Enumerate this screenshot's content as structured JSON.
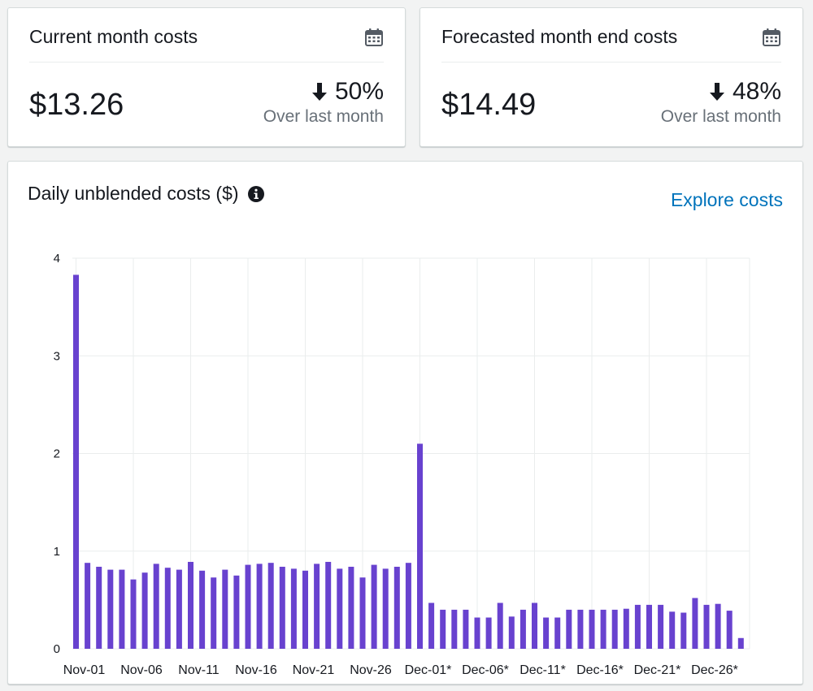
{
  "current": {
    "title": "Current month costs",
    "value": "$13.26",
    "change_pct": "50%",
    "change_label": "Over last month"
  },
  "forecast": {
    "title": "Forecasted month end costs",
    "value": "$14.49",
    "change_pct": "48%",
    "change_label": "Over last month"
  },
  "daily": {
    "title": "Daily unblended costs ($)",
    "link": "Explore costs"
  },
  "colors": {
    "bar": "#6842cf",
    "grid": "#eaeded",
    "link": "#0073bb"
  },
  "chart_data": {
    "type": "bar",
    "title": "Daily unblended costs ($)",
    "ylim": [
      0,
      4
    ],
    "yticks": [
      0,
      1,
      2,
      3,
      4
    ],
    "grid": true,
    "legend": "none",
    "xtick_labels": [
      "Nov-01",
      "Nov-06",
      "Nov-11",
      "Nov-16",
      "Nov-21",
      "Nov-26",
      "Dec-01*",
      "Dec-06*",
      "Dec-11*",
      "Dec-16*",
      "Dec-21*",
      "Dec-26*"
    ],
    "values": [
      3.83,
      0.88,
      0.84,
      0.81,
      0.81,
      0.71,
      0.78,
      0.87,
      0.83,
      0.81,
      0.89,
      0.8,
      0.73,
      0.81,
      0.75,
      0.86,
      0.87,
      0.88,
      0.84,
      0.82,
      0.8,
      0.87,
      0.89,
      0.82,
      0.84,
      0.73,
      0.86,
      0.82,
      0.84,
      0.88,
      2.1,
      0.47,
      0.4,
      0.4,
      0.4,
      0.32,
      0.32,
      0.47,
      0.33,
      0.4,
      0.47,
      0.32,
      0.32,
      0.4,
      0.4,
      0.4,
      0.4,
      0.4,
      0.41,
      0.45,
      0.45,
      0.45,
      0.38,
      0.37,
      0.52,
      0.45,
      0.46,
      0.39,
      0.11
    ]
  }
}
